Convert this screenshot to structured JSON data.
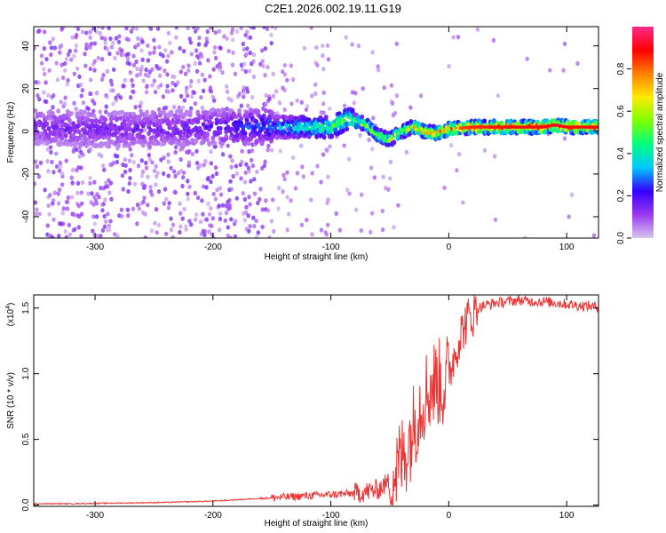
{
  "title": "C2E1.2026.002.19.11.G19",
  "chart_data": [
    {
      "type": "heatmap",
      "xlabel": "Height of straight line (km)",
      "ylabel": "Frequency (Hz)",
      "xlim": [
        -352,
        127
      ],
      "ylim": [
        -50,
        49
      ],
      "xticks": [
        -300,
        -200,
        -100,
        0,
        100
      ],
      "yticks": [
        -40,
        -20,
        0,
        20,
        40
      ],
      "colorbar": {
        "label": "Normalized spectral amplitude",
        "range": [
          0.0,
          1.0
        ],
        "ticks": [
          0.0,
          0.2,
          0.4,
          0.6,
          0.8
        ],
        "tick_labels": [
          "0.0",
          "0.2",
          "0.4",
          "0.6",
          "0.8"
        ],
        "colors": [
          "#d6c6ee",
          "#9b38f0",
          "#3300ff",
          "#00c8ff",
          "#00ff7f",
          "#7fff00",
          "#ffea00",
          "#ff7f00",
          "#ff0000",
          "#ff2a8a"
        ]
      },
      "signal_track": {
        "description": "dominant frequency ridge vs height",
        "heights": [
          -350,
          -300,
          -250,
          -200,
          -150,
          -120,
          -100,
          -85,
          -70,
          -60,
          -50,
          -40,
          -30,
          -20,
          -10,
          0,
          20,
          50,
          80,
          90,
          100,
          120
        ],
        "frequency_hz": [
          2,
          1,
          1,
          2,
          2,
          2,
          2,
          6,
          3,
          -2,
          -4,
          0,
          2,
          0,
          -1,
          1,
          2,
          2,
          2,
          3,
          2,
          2
        ],
        "amplitude": [
          0.15,
          0.15,
          0.16,
          0.18,
          0.3,
          0.45,
          0.5,
          0.55,
          0.6,
          0.55,
          0.6,
          0.62,
          0.7,
          0.75,
          0.8,
          0.8,
          0.85,
          0.88,
          0.88,
          0.92,
          0.88,
          0.88
        ]
      }
    },
    {
      "type": "line",
      "xlabel": "Height of straight line (km)",
      "ylabel": "SNR (10 * v/v)",
      "y_multiplier": "(x10",
      "y_multiplier_exp": "4",
      "y_multiplier_close": ")",
      "xlim": [
        -352,
        127
      ],
      "ylim": [
        -0.01,
        1.6
      ],
      "xticks": [
        -300,
        -200,
        -100,
        0,
        100
      ],
      "yticks": [
        0.0,
        0.5,
        1.0,
        1.5
      ],
      "ytick_labels": [
        "0.0",
        "0.5",
        "1.0",
        "1.5"
      ],
      "color": "#ee3333",
      "series": [
        {
          "name": "SNR",
          "x": [
            -352,
            -320,
            -280,
            -240,
            -200,
            -180,
            -160,
            -140,
            -120,
            -100,
            -80,
            -70,
            -60,
            -50,
            -45,
            -40,
            -35,
            -30,
            -25,
            -20,
            -15,
            -10,
            -5,
            0,
            5,
            10,
            15,
            20,
            25,
            30,
            40,
            50,
            60,
            70,
            80,
            90,
            100,
            110,
            127
          ],
          "y": [
            0.01,
            0.01,
            0.015,
            0.02,
            0.03,
            0.04,
            0.05,
            0.06,
            0.07,
            0.08,
            0.09,
            0.1,
            0.12,
            0.18,
            0.25,
            0.35,
            0.45,
            0.6,
            0.75,
            0.85,
            0.9,
            0.95,
            0.9,
            1.0,
            1.15,
            1.3,
            1.4,
            1.45,
            1.5,
            1.52,
            1.54,
            1.55,
            1.56,
            1.55,
            1.55,
            1.54,
            1.53,
            1.52,
            1.51
          ]
        }
      ]
    }
  ]
}
